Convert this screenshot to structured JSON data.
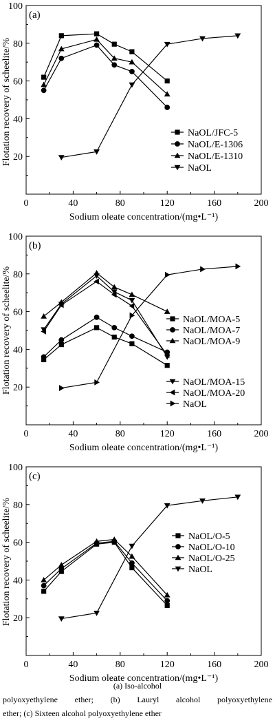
{
  "chart_data": [
    {
      "type": "line",
      "panel_label": "(a)",
      "xlabel": "Sodium oleate concentration/(mg•L⁻¹)",
      "ylabel": "Flotation recovery of scheelite/%",
      "xlim": [
        0,
        200
      ],
      "ylim": [
        0,
        100
      ],
      "xticks": [
        "0",
        "40",
        "80",
        "120",
        "160",
        "200"
      ],
      "yticks": [
        "20",
        "40",
        "60",
        "80",
        "100"
      ],
      "legend_position": "lower-right",
      "series": [
        {
          "name": "NaOL/JFC-5",
          "marker": "square",
          "x": [
            15,
            30,
            60,
            75,
            90,
            120
          ],
          "y": [
            62,
            84,
            85,
            79.5,
            75.5,
            60
          ]
        },
        {
          "name": "NaOL/E-1306",
          "marker": "circle",
          "x": [
            15,
            30,
            60,
            75,
            90,
            120
          ],
          "y": [
            55,
            72,
            79,
            68.5,
            65,
            46
          ]
        },
        {
          "name": "NaOL/E-1310",
          "marker": "triangle-up",
          "x": [
            15,
            30,
            60,
            75,
            90,
            120
          ],
          "y": [
            58,
            77,
            82,
            72,
            70,
            53
          ]
        },
        {
          "name": "NaOL",
          "marker": "triangle-down",
          "x": [
            30,
            60,
            90,
            120,
            150,
            180
          ],
          "y": [
            19.5,
            22.5,
            58,
            79.5,
            82.5,
            84
          ]
        }
      ]
    },
    {
      "type": "line",
      "panel_label": "(b)",
      "xlabel": "Sodium oleate concentration/(mg•L⁻¹)",
      "ylabel": "Flotation recovery of scheelite/%",
      "xlim": [
        0,
        200
      ],
      "ylim": [
        0,
        100
      ],
      "xticks": [
        "0",
        "40",
        "80",
        "120",
        "160",
        "200"
      ],
      "yticks": [
        "20",
        "40",
        "60",
        "80",
        "100"
      ],
      "legend_position": "right",
      "series": [
        {
          "name": "NaOL/MOA-5",
          "marker": "square",
          "x": [
            15,
            30,
            60,
            75,
            90,
            120
          ],
          "y": [
            34.5,
            42.5,
            51.5,
            46.5,
            43,
            31.5
          ]
        },
        {
          "name": "NaOL/MOA-7",
          "marker": "circle",
          "x": [
            15,
            30,
            60,
            75,
            90,
            120
          ],
          "y": [
            36,
            45,
            57,
            51.5,
            47,
            38.5
          ]
        },
        {
          "name": "NaOL/MOA-9",
          "marker": "triangle-up",
          "x": [
            15,
            30,
            60,
            75,
            90,
            120
          ],
          "y": [
            57.5,
            65,
            80.5,
            73,
            69,
            60
          ]
        },
        {
          "name": "NaOL/MOA-15",
          "marker": "triangle-down",
          "x": [
            15,
            30,
            60,
            75,
            90,
            120
          ],
          "y": [
            50.5,
            64,
            79,
            70.5,
            66,
            36
          ]
        },
        {
          "name": "NaOL/MOA-20",
          "marker": "triangle-left",
          "x": [
            15,
            30,
            60,
            75,
            90,
            120
          ],
          "y": [
            49.5,
            63.5,
            76,
            69,
            63,
            37
          ]
        },
        {
          "name": "NaOL",
          "marker": "triangle-right",
          "x": [
            30,
            60,
            90,
            120,
            150,
            180
          ],
          "y": [
            19.5,
            22.5,
            58,
            79.5,
            82.5,
            84
          ]
        }
      ]
    },
    {
      "type": "line",
      "panel_label": "(c)",
      "xlabel": "Sodium oleate concentration/(mg•L⁻¹)",
      "ylabel": "Flotation recovery of scheelite/%",
      "xlim": [
        0,
        200
      ],
      "ylim": [
        0,
        100
      ],
      "xticks": [
        "0",
        "40",
        "80",
        "120",
        "160",
        "200"
      ],
      "yticks": [
        "20",
        "40",
        "60",
        "80",
        "100"
      ],
      "legend_position": "right",
      "series": [
        {
          "name": "NaOL/O-5",
          "marker": "square",
          "x": [
            15,
            30,
            60,
            75,
            90,
            120
          ],
          "y": [
            34,
            44.5,
            59,
            60,
            46.5,
            26.5
          ]
        },
        {
          "name": "NaOL/O-10",
          "marker": "circle",
          "x": [
            15,
            30,
            60,
            75,
            90,
            120
          ],
          "y": [
            37,
            46,
            59.5,
            60.5,
            49,
            29
          ]
        },
        {
          "name": "NaOL/O-25",
          "marker": "triangle-up",
          "x": [
            15,
            30,
            60,
            75,
            90,
            120
          ],
          "y": [
            40,
            48,
            60.5,
            61.5,
            52.5,
            32
          ]
        },
        {
          "name": "NaOL",
          "marker": "triangle-down",
          "x": [
            30,
            60,
            90,
            120,
            150,
            180
          ],
          "y": [
            19.5,
            22.5,
            58,
            79.5,
            82,
            84
          ]
        }
      ]
    }
  ],
  "caption": {
    "line1": "(a)  Iso-alcohol",
    "line2": "polyoxyethylene ether; (b) Lauryl alcohol polyoxyethylene",
    "line3": "ether; (c) Sixteen alcohol polyoxyethylene ether"
  }
}
